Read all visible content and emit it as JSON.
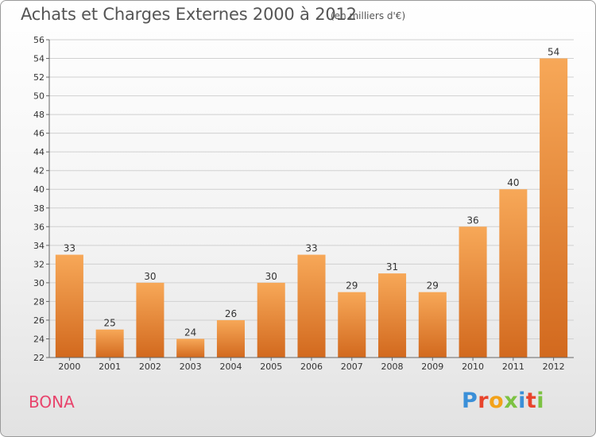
{
  "header": {
    "title": "Achats et Charges Externes 2000 à 2012",
    "unit": "(en milliers d'€)"
  },
  "footer": {
    "commune": "BONA",
    "logo_text": "Proxiti",
    "logo_colors": [
      "#3a8fd8",
      "#e8442c",
      "#f2a21a",
      "#7cc242",
      "#3a8fd8",
      "#e8442c",
      "#7cc242"
    ]
  },
  "colors": {
    "bar_top": "#f7a858",
    "bar_bottom": "#d2691e",
    "grid": "#d0d0d0",
    "axis": "#666666",
    "commune_text": "#e8446c"
  },
  "chart_data": {
    "type": "bar",
    "title": "Achats et Charges Externes 2000 à 2012",
    "subtitle": "(en milliers d'€)",
    "xlabel": "",
    "ylabel": "",
    "categories": [
      "2000",
      "2001",
      "2002",
      "2003",
      "2004",
      "2005",
      "2006",
      "2007",
      "2008",
      "2009",
      "2010",
      "2011",
      "2012"
    ],
    "values": [
      33,
      25,
      30,
      24,
      26,
      30,
      33,
      29,
      31,
      29,
      36,
      40,
      54
    ],
    "ylim": [
      22,
      56
    ],
    "ytick_step": 2,
    "grid": true,
    "data_labels": true
  }
}
